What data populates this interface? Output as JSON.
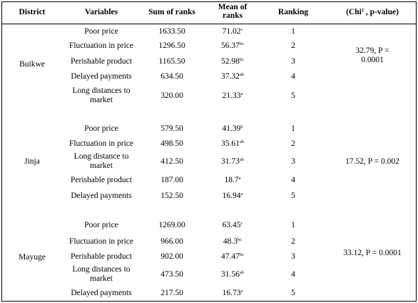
{
  "headers": {
    "district": "District",
    "variables": "Variables",
    "sum": "Sum of ranks",
    "mean": "Mean of ranks",
    "ranking": "Ranking",
    "chi": "(Chi², p-value)"
  },
  "groups": [
    {
      "district": "Buikwe",
      "chi": "32.79, P = 0.0001",
      "rows": [
        {
          "variable": "Poor price",
          "sum": "1633.50",
          "mean": "71.02",
          "sup": "c",
          "rank": "1"
        },
        {
          "variable": "Fluctuation in price",
          "sum": "1296.50",
          "mean": "56.37",
          "sup": "bc",
          "rank": "2"
        },
        {
          "variable": "Perishable product",
          "sum": "1165.50",
          "mean": "52.98",
          "sup": "bc",
          "rank": "3"
        },
        {
          "variable": "Delayed payments",
          "sum": "634.50",
          "mean": "37.32",
          "sup": "ab",
          "rank": "4"
        },
        {
          "variable": "Long distances to market",
          "sum": "320.00",
          "mean": "21.33",
          "sup": "a",
          "rank": "5"
        }
      ]
    },
    {
      "district": "Jinja",
      "chi": "17.52, P = 0.002",
      "rows": [
        {
          "variable": "Poor price",
          "sum": "579.50",
          "mean": "41.39",
          "sup": "b",
          "rank": "1"
        },
        {
          "variable": "Fluctuation in price",
          "sum": "498.50",
          "mean": "35.61",
          "sup": "ab",
          "rank": "2"
        },
        {
          "variable": "Long distance to market",
          "sum": "412.50",
          "mean": "31.73",
          "sup": "ab",
          "rank": "3"
        },
        {
          "variable": "Perishable product",
          "sum": "187.00",
          "mean": "18.7",
          "sup": "a",
          "rank": "4"
        },
        {
          "variable": "Delayed payments",
          "sum": "152.50",
          "mean": "16.94",
          "sup": "a",
          "rank": "5"
        }
      ]
    },
    {
      "district": "Mayuge",
      "chi": "33.12, P = 0.0001",
      "rows": [
        {
          "variable": "Poor price",
          "sum": "1269.00",
          "mean": "63.45",
          "sup": "c",
          "rank": "1"
        },
        {
          "variable": "Fluctuation in price",
          "sum": "966.00",
          "mean": "48.3",
          "sup": "bc",
          "rank": "2"
        },
        {
          "variable": "Perishable product",
          "sum": "902.00",
          "mean": "47.47",
          "sup": "bc",
          "rank": "3"
        },
        {
          "variable": "Long distances to market",
          "sum": "473.50",
          "mean": "31.56",
          "sup": "ab",
          "rank": "4"
        },
        {
          "variable": "Delayed payments",
          "sum": "217.50",
          "mean": "16.73",
          "sup": "a",
          "rank": "5"
        }
      ]
    }
  ]
}
